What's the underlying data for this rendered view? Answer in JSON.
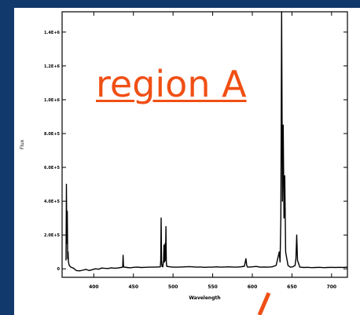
{
  "colors": {
    "background": "#12396b",
    "panel": "#ffffff",
    "trace": "#000000",
    "annotation": "#f04f14"
  },
  "annotation": {
    "text": "region A",
    "pointer": "orange-arrow"
  },
  "chart_data": {
    "type": "line",
    "title": "",
    "xlabel": "Wavelength",
    "ylabel": "Flux",
    "xlim": [
      360,
      720
    ],
    "ylim": [
      -0.05,
      1.52
    ],
    "x_ticks": [
      "400",
      "450",
      "500",
      "550",
      "600",
      "650",
      "700"
    ],
    "y_ticks": [
      "0",
      "2.0E+5",
      "4.0E+5",
      "6.0E+5",
      "8.0E+5",
      "1.0E+6",
      "1.2E+6",
      "1.4E+6"
    ],
    "y_tick_values": [
      0,
      0.2,
      0.4,
      0.6,
      0.8,
      1.0,
      1.2,
      1.4
    ],
    "grid": false,
    "series": [
      {
        "x": [
          365,
          365.5,
          366,
          366.5,
          367,
          367.5,
          368,
          369,
          371,
          374,
          378,
          382,
          386,
          390,
          394,
          398,
          402,
          406,
          410,
          414,
          418,
          422,
          426,
          430,
          434,
          436.5,
          437,
          437.5,
          438,
          442,
          446,
          450,
          455,
          460,
          465,
          470,
          475,
          480,
          484,
          484.5,
          485,
          485.5,
          486,
          487,
          488,
          488.5,
          489,
          489.5,
          490,
          490.5,
          491,
          491.5,
          492,
          496,
          500,
          505,
          510,
          515,
          520,
          525,
          530,
          535,
          540,
          545,
          550,
          555,
          560,
          565,
          570,
          575,
          580,
          585,
          590,
          592,
          593,
          594,
          600,
          605,
          610,
          615,
          620,
          625,
          630,
          634,
          635,
          636,
          637,
          638,
          639,
          640,
          641,
          642,
          645,
          648,
          651,
          654,
          655,
          656,
          657,
          660,
          665,
          670,
          675,
          680,
          685,
          690,
          695,
          700,
          705,
          710,
          715,
          720
        ],
        "y": [
          0.05,
          0.5,
          0.15,
          0.34,
          0.06,
          0.1,
          0.04,
          0.02,
          0.01,
          0.005,
          -0.01,
          -0.012,
          -0.008,
          -0.003,
          -0.01,
          -0.005,
          0.0,
          -0.002,
          0.005,
          0.003,
          0.002,
          0.006,
          0.004,
          0.005,
          0.008,
          0.01,
          0.08,
          0.02,
          0.01,
          0.008,
          0.006,
          0.009,
          0.01,
          0.008,
          0.009,
          0.01,
          0.01,
          0.011,
          0.012,
          0.05,
          0.3,
          0.05,
          0.015,
          0.012,
          0.05,
          0.14,
          0.04,
          0.05,
          0.15,
          0.05,
          0.25,
          0.04,
          0.015,
          0.012,
          0.01,
          0.01,
          0.011,
          0.012,
          0.013,
          0.012,
          0.01,
          0.011,
          0.009,
          0.01,
          0.01,
          0.012,
          0.01,
          0.011,
          0.012,
          0.011,
          0.01,
          0.012,
          0.015,
          0.06,
          0.02,
          0.01,
          0.012,
          0.014,
          0.01,
          0.011,
          0.01,
          0.012,
          0.02,
          0.1,
          0.04,
          0.3,
          1.55,
          0.4,
          0.85,
          0.3,
          0.55,
          0.1,
          0.02,
          0.01,
          0.012,
          0.02,
          0.06,
          0.2,
          0.05,
          0.01,
          0.008,
          0.009,
          0.007,
          0.008,
          0.009,
          0.007,
          0.008,
          0.009,
          0.008,
          0.009,
          0.008,
          0.01
        ]
      }
    ]
  }
}
